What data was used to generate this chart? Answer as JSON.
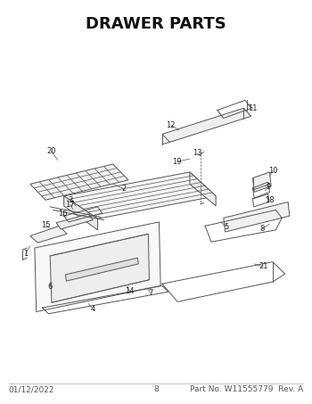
{
  "title": "DRAWER PARTS",
  "title_fontsize": 13,
  "title_fontweight": "bold",
  "bg_color": "#ffffff",
  "line_color": "#555555",
  "footer_left": "01/12/2022",
  "footer_center": "8",
  "footer_right": "Part No. W11555779  Rev. A",
  "footer_fontsize": 6.5,
  "lw_main": 0.7,
  "lw_thin": 0.5
}
